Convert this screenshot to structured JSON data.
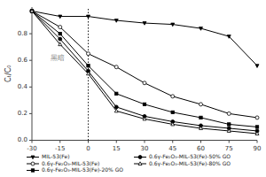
{
  "chart_data": {
    "type": "line",
    "y_label": "Cₜ/C₀",
    "x": [
      -30,
      -15,
      0,
      15,
      30,
      45,
      60,
      75,
      90
    ],
    "xlim": [
      -30,
      90
    ],
    "xticks": [
      -30,
      -15,
      0,
      15,
      30,
      45,
      60,
      75,
      90
    ],
    "ylim": [
      0.0,
      1.0
    ],
    "yticks": [
      {
        "value": 0.0,
        "label": "0.0"
      },
      0.2,
      0.4,
      0.6,
      0.8
    ],
    "vlines": [
      0
    ],
    "annotations": [
      {
        "text": "黑暗",
        "x": -20,
        "y": 0.6
      }
    ],
    "grid": false,
    "legend": "bottom",
    "series": [
      {
        "name": "MIL-53(Fe)",
        "color": "#000000",
        "marker": "triangle-down",
        "values": [
          0.97,
          0.93,
          0.93,
          0.9,
          0.88,
          0.87,
          0.84,
          0.78,
          0.56
        ]
      },
      {
        "name": "0.6γ-Fe₂O₃-MIL-53(Fe)",
        "color": "#000000",
        "marker": "circle-open",
        "values": [
          0.97,
          0.85,
          0.65,
          0.55,
          0.43,
          0.33,
          0.27,
          0.2,
          0.17
        ]
      },
      {
        "name": "0.6γ-Fe₂O₃-MIL-53(Fe)-20% GO",
        "color": "#000000",
        "marker": "square",
        "values": [
          0.97,
          0.8,
          0.56,
          0.35,
          0.27,
          0.21,
          0.17,
          0.12,
          0.1
        ]
      },
      {
        "name": "0.6γ-Fe₂O₃-MIL-53(Fe)-50% GO",
        "color": "#000000",
        "marker": "circle",
        "values": [
          0.97,
          0.76,
          0.52,
          0.25,
          0.18,
          0.14,
          0.11,
          0.09,
          0.07
        ]
      },
      {
        "name": "0.6γ-Fe₂O₃-MIL-53(Fe)-80% GO",
        "color": "#000000",
        "marker": "triangle-up-open",
        "values": [
          0.97,
          0.72,
          0.5,
          0.22,
          0.16,
          0.12,
          0.09,
          0.07,
          0.05
        ]
      }
    ]
  }
}
